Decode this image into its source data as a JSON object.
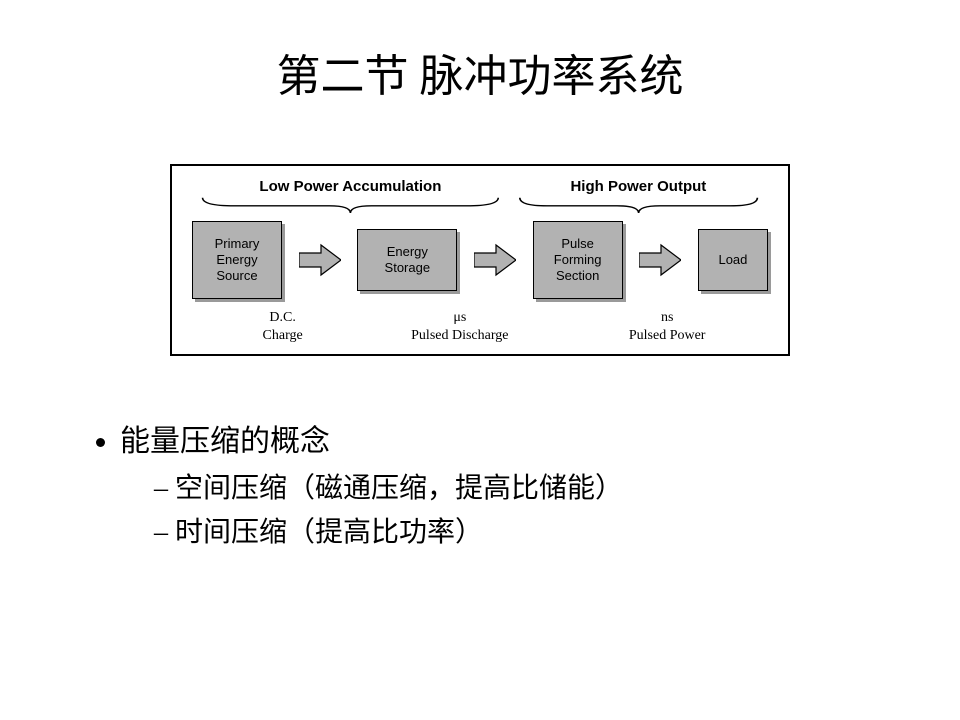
{
  "title": "第二节  脉冲功率系统",
  "diagram": {
    "type": "flowchart",
    "border_color": "#000000",
    "background_color": "#ffffff",
    "box_fill": "#b2b2b2",
    "box_shadow": "#9a9a9a",
    "arrow_fill": "#b2b2b2",
    "arrow_stroke": "#000000",
    "font_section": {
      "family": "Arial",
      "weight": "bold",
      "size_pt": 11
    },
    "font_box": {
      "family": "Arial",
      "weight": "normal",
      "size_pt": 10
    },
    "font_caption": {
      "family": "Times New Roman",
      "weight": "normal",
      "size_pt": 11
    },
    "sections": {
      "left": "Low Power Accumulation",
      "right": "High Power Output"
    },
    "nodes": [
      {
        "id": "n1",
        "label": "Primary\nEnergy\nSource"
      },
      {
        "id": "n2",
        "label": "Energy\nStorage"
      },
      {
        "id": "n3",
        "label": "Pulse\nForming\nSection"
      },
      {
        "id": "n4",
        "label": "Load"
      }
    ],
    "edges": [
      {
        "from": "n1",
        "to": "n2"
      },
      {
        "from": "n2",
        "to": "n3"
      },
      {
        "from": "n3",
        "to": "n4"
      }
    ],
    "captions": [
      {
        "top": "",
        "bottom1": "D.C.",
        "bottom2": "Charge"
      },
      {
        "top": "μs",
        "bottom1": "Pulsed Discharge",
        "bottom2": ""
      },
      {
        "top": "ns",
        "bottom1": "Pulsed Power",
        "bottom2": ""
      }
    ]
  },
  "bullets": {
    "main": "能量压缩的概念",
    "subs": [
      "空间压缩（磁通压缩，提高比储能）",
      "时间压缩（提高比功率）"
    ]
  }
}
